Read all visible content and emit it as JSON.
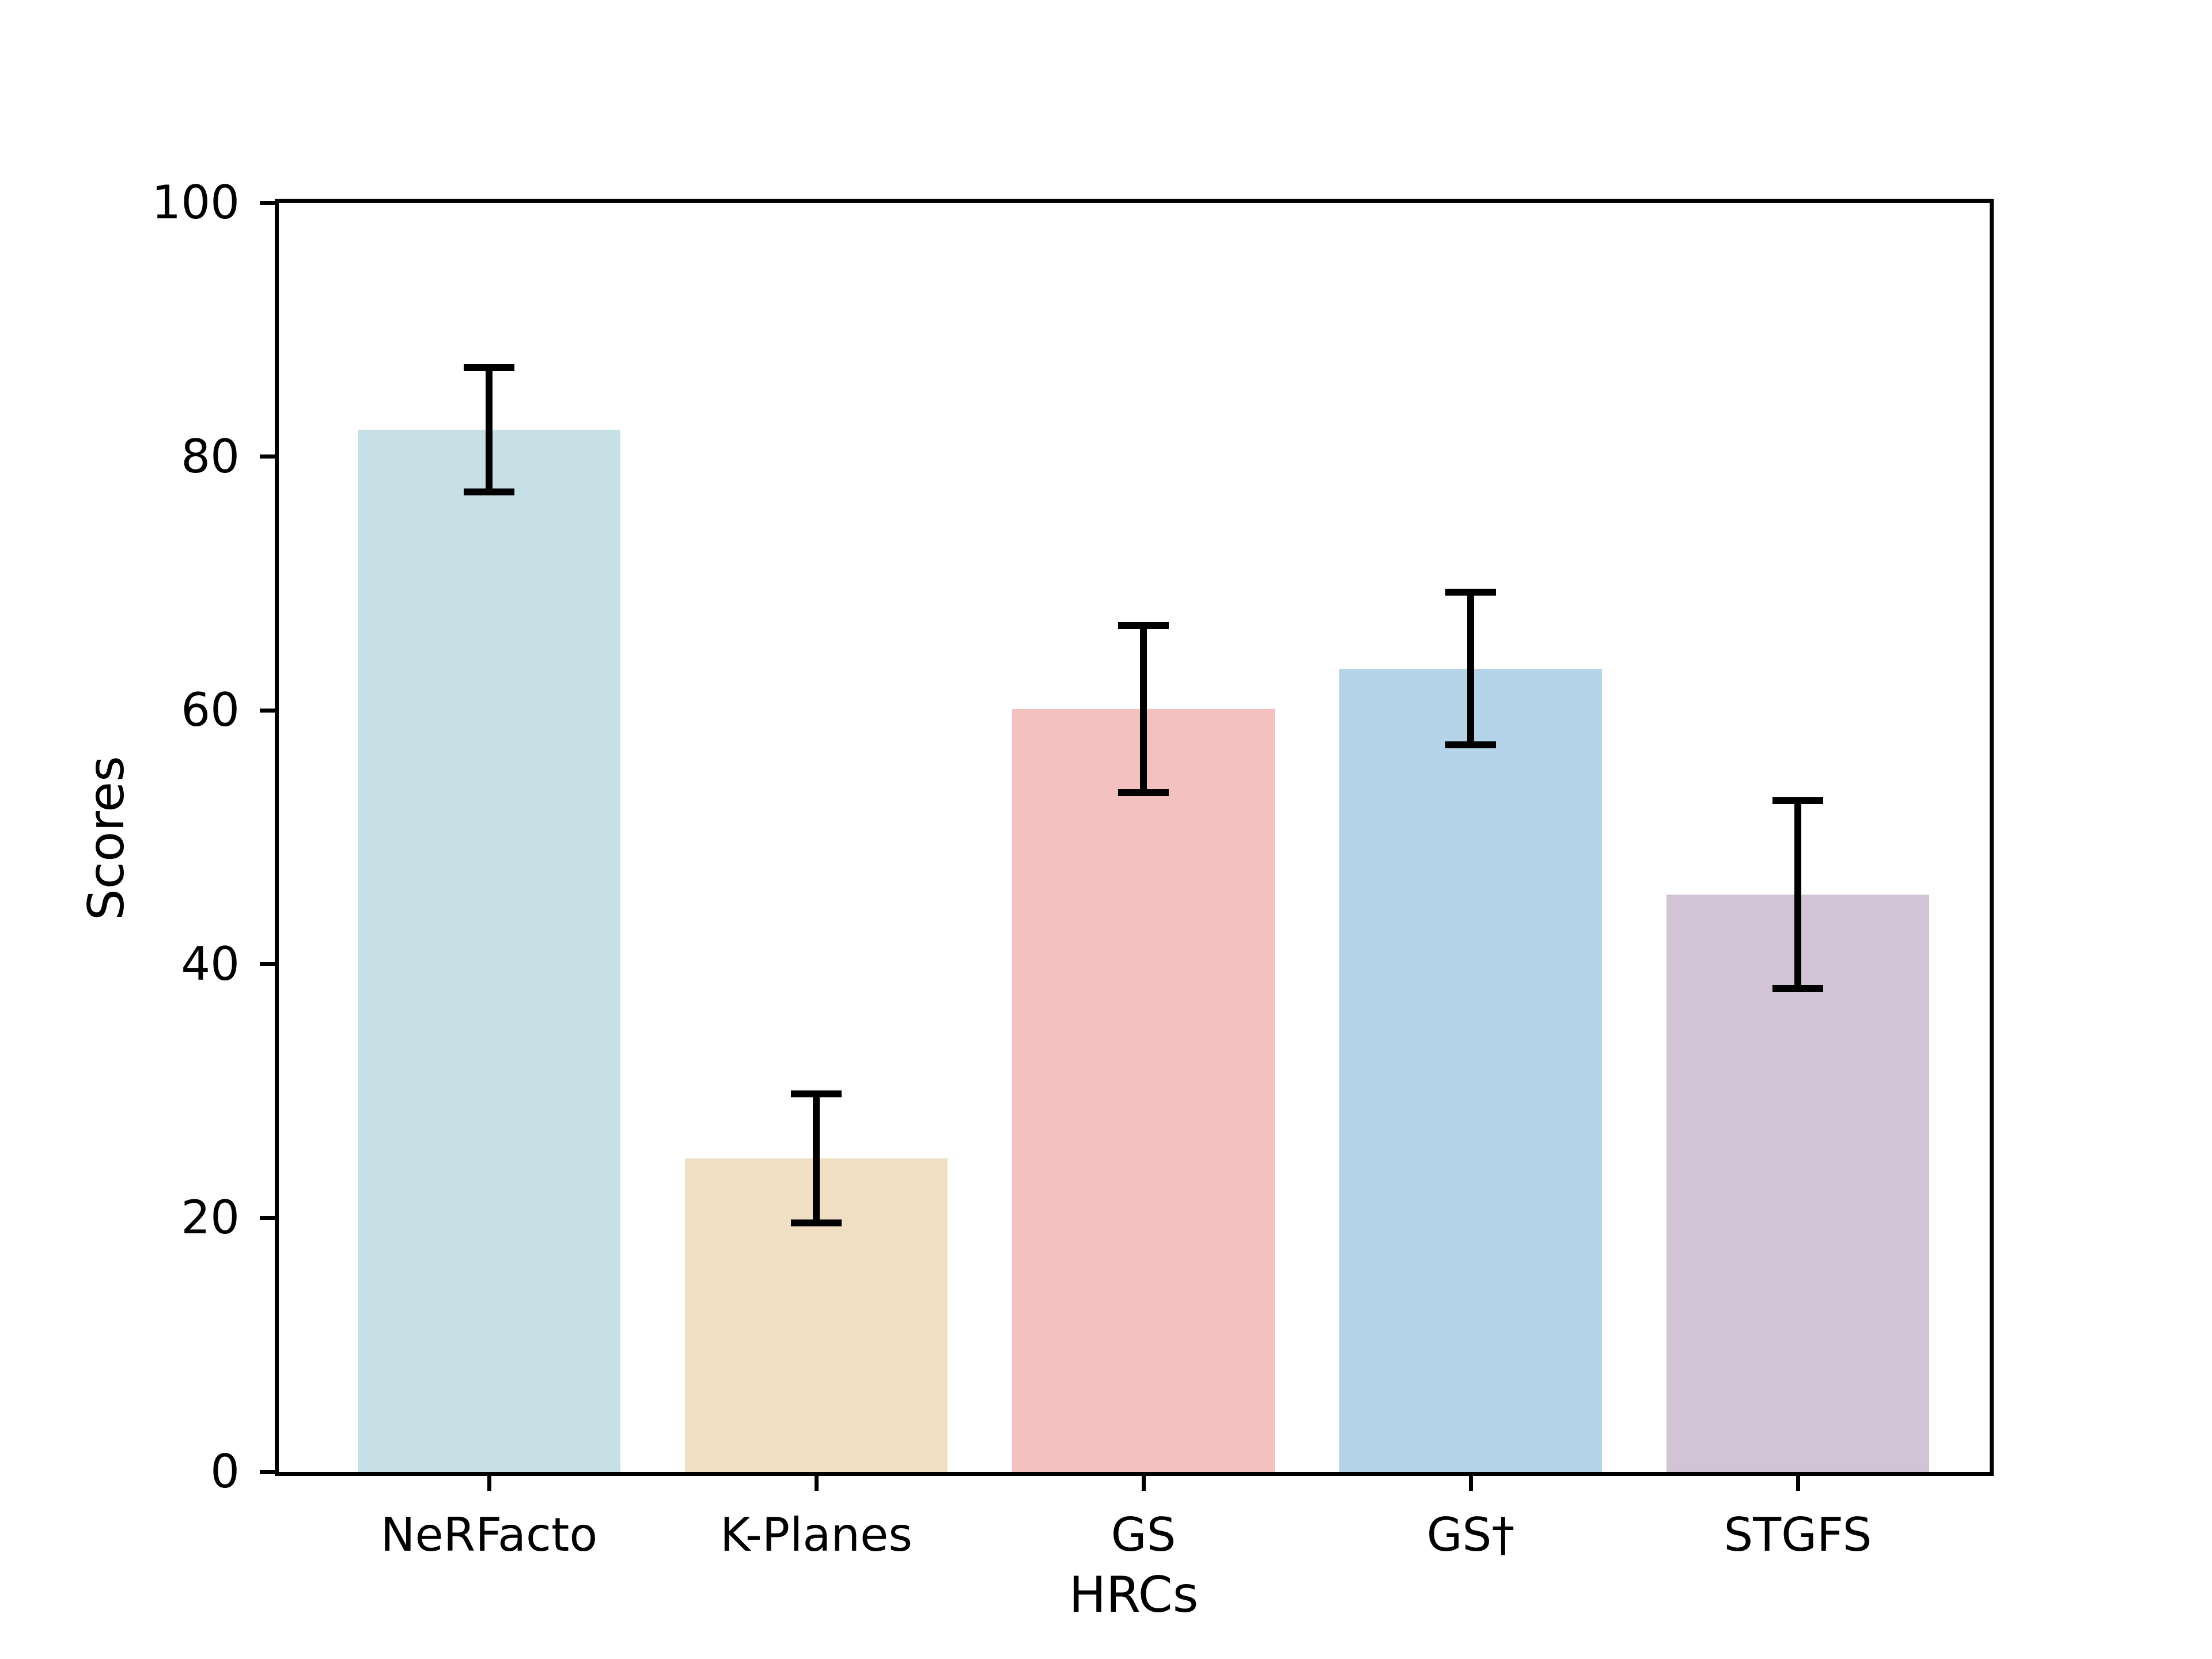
{
  "figure": {
    "background_color": "#ffffff",
    "spine_color": "#000000",
    "text_color": "#000000"
  },
  "chart_data": {
    "type": "bar",
    "title": "",
    "xlabel": "HRCs",
    "ylabel": "Scores",
    "categories": [
      "NeRFacto",
      "K-Planes",
      "GS",
      "GS†",
      "STGFS"
    ],
    "values": [
      82.1,
      24.7,
      60.1,
      63.3,
      45.5
    ],
    "error_bars": [
      4.9,
      5.1,
      6.6,
      6.0,
      7.4
    ],
    "bar_colors": [
      "#c7e0e6",
      "#f0dfc3",
      "#f4c1c1",
      "#b5d4ea",
      "#d2c3d6"
    ],
    "errorbar_color": "#000000",
    "ylim": [
      0,
      100
    ],
    "yticks": [
      0,
      20,
      40,
      60,
      80,
      100
    ],
    "ytick_labels": [
      "0",
      "20",
      "40",
      "60",
      "80",
      "100"
    ],
    "grid": false,
    "legend": null,
    "layout": {
      "spines": "full-box",
      "tick_direction": "out"
    }
  }
}
